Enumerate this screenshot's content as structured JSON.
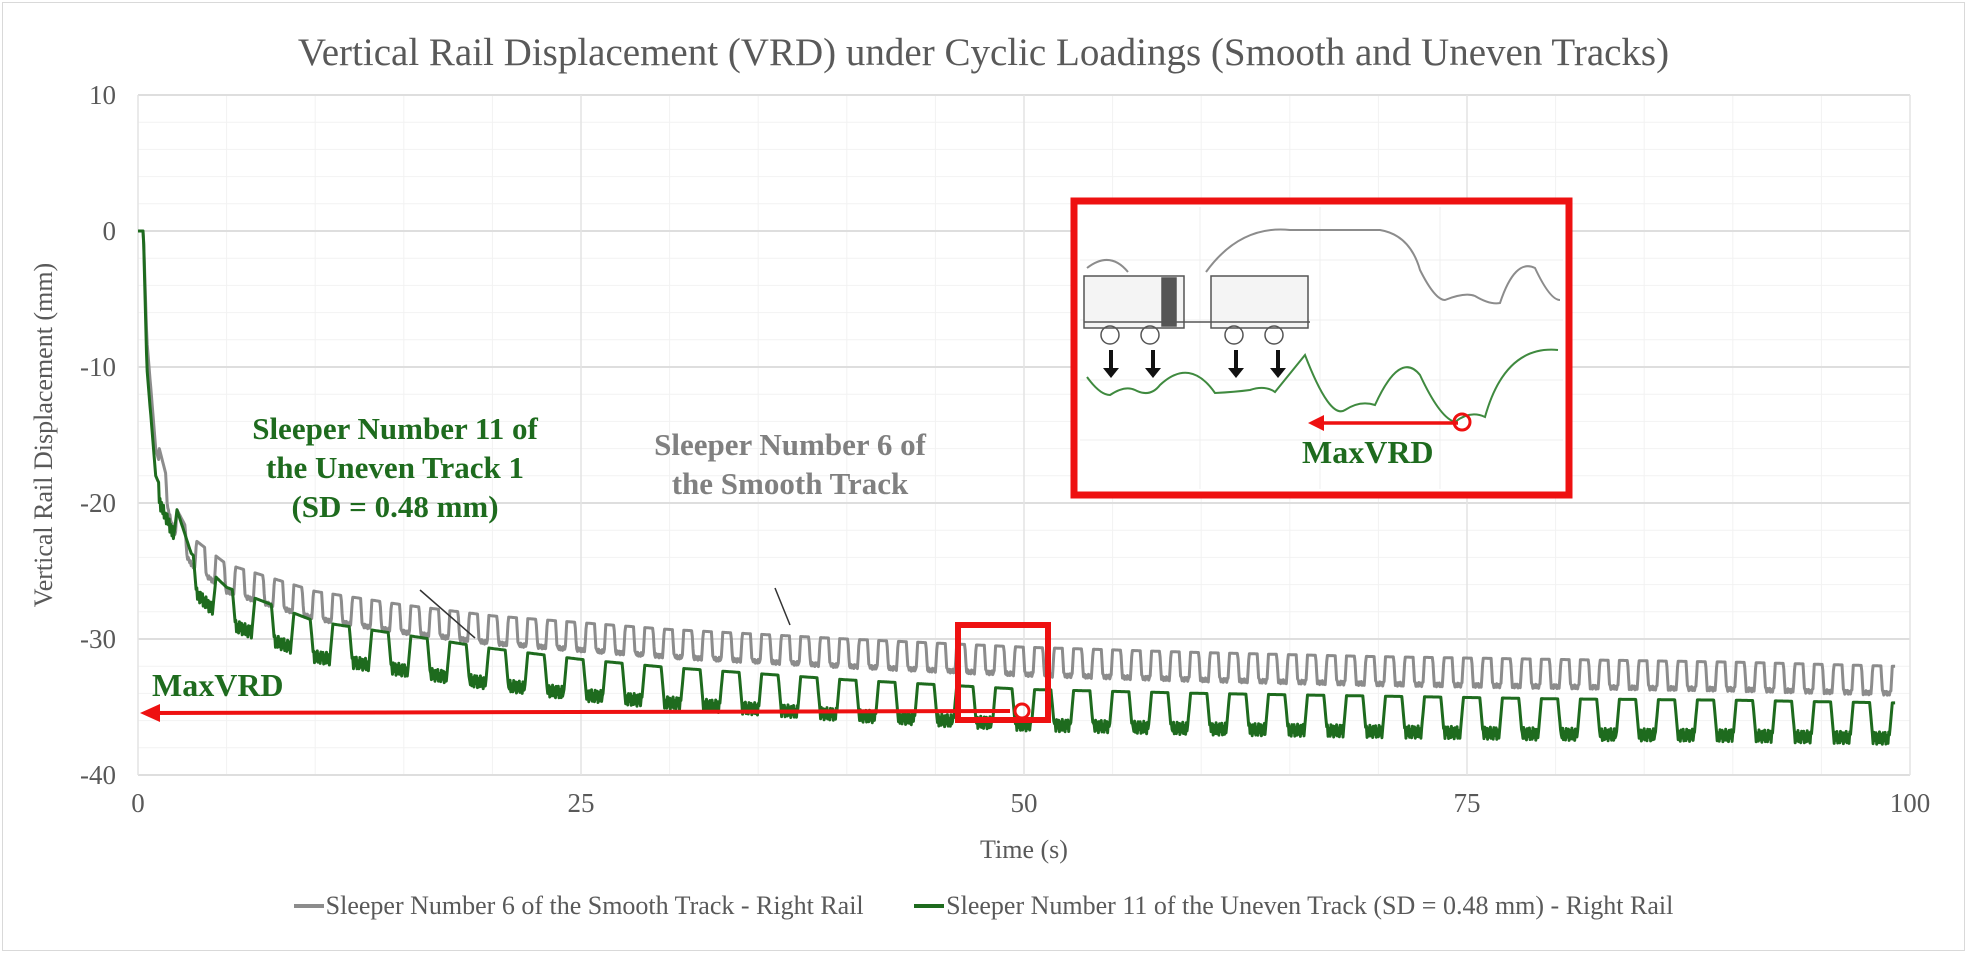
{
  "chart_data": {
    "type": "line",
    "title": "Vertical Rail Displacement (VRD) under Cyclic Loadings (Smooth and Uneven Tracks)",
    "xlabel": "Time (s)",
    "ylabel": "Vertical Rail Displacement (mm)",
    "xlim": [
      0,
      100
    ],
    "ylim": [
      -40,
      10
    ],
    "x_ticks": [
      "0",
      "25",
      "50",
      "75",
      "100"
    ],
    "y_ticks": [
      "10",
      "0",
      "-10",
      "-20",
      "-30",
      "-40"
    ],
    "grid": true,
    "legend_position": "bottom",
    "series": [
      {
        "name": "Sleeper Number 6 of the Smooth Track - Right Rail",
        "color": "#8c8c8c",
        "description": "Rapid drop from 0 at t≈0.3 s to about -16 at t≈1 s, then cyclic oscillation (~1.1 s period, ~2 mm amplitude) settling gradually",
        "x": [
          0,
          0.3,
          0.5,
          1,
          2,
          3,
          5,
          10,
          15,
          20,
          25,
          30,
          40,
          50,
          60,
          70,
          80,
          90,
          99
        ],
        "values": [
          0,
          0,
          -8,
          -16,
          -21,
          -23.5,
          -25.5,
          -27.5,
          -28.5,
          -29.3,
          -29.8,
          -30.3,
          -31,
          -31.6,
          -32,
          -32.3,
          -32.5,
          -32.7,
          -33
        ]
      },
      {
        "name": "Sleeper Number 11 of the Uneven Track (SD = 0.48 mm) - Right Rail",
        "color": "#1e6b1e",
        "description": "Rapid drop from 0 then stepped cyclic oscillation (~2.2 s period, ~3 mm amplitude), lower than smooth track",
        "x": [
          0,
          0.3,
          0.5,
          1,
          2,
          3,
          5,
          10,
          15,
          20,
          25,
          30,
          40,
          50,
          60,
          70,
          80,
          90,
          99
        ],
        "values": [
          0,
          0,
          -10,
          -18,
          -21,
          -25,
          -27.5,
          -30,
          -31,
          -32,
          -32.8,
          -33.4,
          -34.3,
          -35,
          -35.3,
          -35.5,
          -35.7,
          -35.8,
          -36
        ]
      }
    ],
    "annotations": [
      {
        "text": "Sleeper Number 11 of the Uneven Track 1 (SD = 0.48 mm)",
        "color": "#1e6b1e"
      },
      {
        "text": "Sleeper Number 6 of the Smooth Track",
        "color": "#808080"
      },
      {
        "text": "MaxVRD",
        "color": "#1e6b1e",
        "value_mm": -35.8,
        "time_s": 49.5
      },
      {
        "text": "MaxVRD (inset)",
        "color": "#1e6b1e"
      }
    ]
  },
  "title": "Vertical Rail Displacement (VRD) under Cyclic Loadings (Smooth and Uneven Tracks)",
  "axes": {
    "xlabel": "Time (s)",
    "ylabel": "Vertical Rail Displacement (mm)",
    "x_ticks": [
      "0",
      "25",
      "50",
      "75",
      "100"
    ],
    "y_ticks": [
      "10",
      "0",
      "-10",
      "-20",
      "-30",
      "-40"
    ]
  },
  "legend": [
    {
      "label": "Sleeper Number 6 of the Smooth Track - Right Rail",
      "color": "#8c8c8c"
    },
    {
      "label": "Sleeper Number 11 of the Uneven Track (SD = 0.48 mm) - Right Rail",
      "color": "#1e6b1e"
    }
  ],
  "annotations": {
    "uneven_line1": "Sleeper Number 11 of",
    "uneven_line2": "the Uneven Track 1",
    "uneven_line3": "(SD = 0.48 mm)",
    "smooth_line1": "Sleeper Number 6 of",
    "smooth_line2": "the Smooth Track",
    "maxvrd": "MaxVRD",
    "inset_maxvrd": "MaxVRD"
  },
  "colors": {
    "smooth": "#8c8c8c",
    "uneven": "#1e6b1e",
    "highlight": "#ee1111",
    "grid": "#e6e6e6",
    "text": "#595959"
  }
}
